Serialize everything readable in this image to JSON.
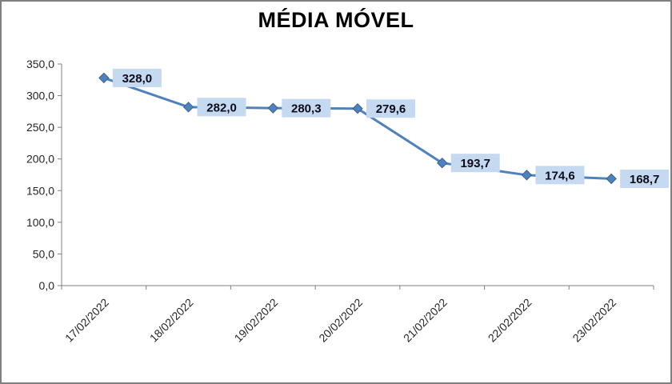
{
  "chart_data": {
    "type": "line",
    "title": "MÉDIA MÓVEL",
    "categories": [
      "17/02/2022",
      "18/02/2022",
      "19/02/2022",
      "20/02/2022",
      "21/02/2022",
      "22/02/2022",
      "23/02/2022"
    ],
    "values": [
      328.0,
      282.0,
      280.3,
      279.6,
      193.7,
      174.6,
      168.7
    ],
    "point_labels": [
      "328,0",
      "282,0",
      "280,3",
      "279,6",
      "193,7",
      "174,6",
      "168,7"
    ],
    "xlabel": "",
    "ylabel": "",
    "ylim": [
      0,
      350
    ],
    "ytick_step": 50,
    "ytick_labels": [
      "0,0",
      "50,0",
      "100,0",
      "150,0",
      "200,0",
      "250,0",
      "300,0",
      "350,0"
    ],
    "grid": false,
    "legend": "none",
    "colors": {
      "line": "#4F81BD",
      "marker": "#4F81BD",
      "marker_stroke": "#38618C",
      "label_box": "#C5D9F1",
      "label_text": "#0B0B1A",
      "axis": "#808080",
      "axis_text": "#262626",
      "border": "#808080",
      "background": "#FFFFFF"
    }
  }
}
